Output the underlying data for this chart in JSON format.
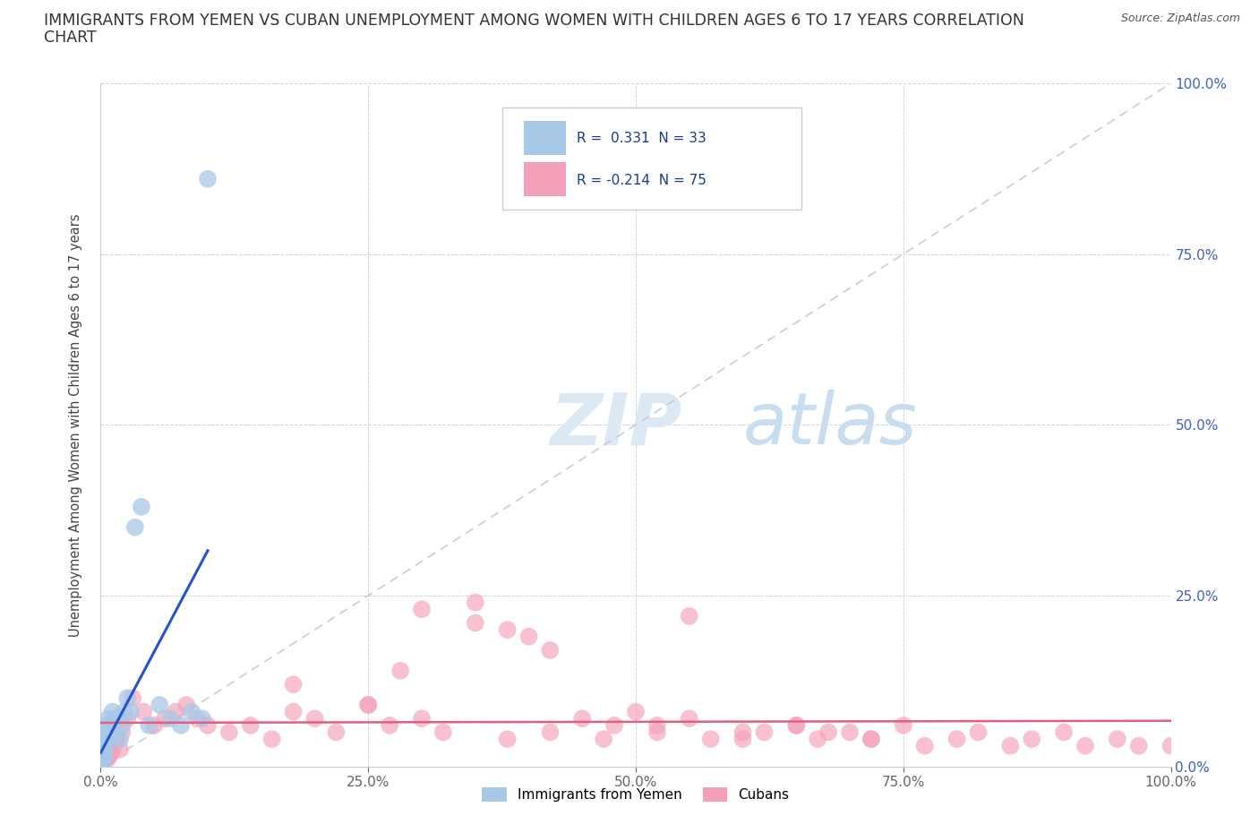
{
  "title_line1": "IMMIGRANTS FROM YEMEN VS CUBAN UNEMPLOYMENT AMONG WOMEN WITH CHILDREN AGES 6 TO 17 YEARS CORRELATION",
  "title_line2": "CHART",
  "source": "Source: ZipAtlas.com",
  "ylabel": "Unemployment Among Women with Children Ages 6 to 17 years",
  "color_yemen": "#a8c8e8",
  "color_cuba": "#f4a0b8",
  "color_trend_yemen": "#2255cc",
  "color_trend_cuba": "#e06080",
  "color_diag": "#c0c8d8",
  "color_grid": "#c8d0dc",
  "color_ytick_right": "#4060c0",
  "color_xtick_bottom": "#4060c0",
  "R_yemen": 0.331,
  "N_yemen": 33,
  "R_cuba": -0.214,
  "N_cuba": 75,
  "xlim": [
    0,
    1.0
  ],
  "ylim": [
    0,
    1.0
  ],
  "tick_vals": [
    0,
    0.25,
    0.5,
    0.75,
    1.0
  ],
  "tick_labels": [
    "0.0%",
    "25.0%",
    "50.0%",
    "75.0%",
    "100.0%"
  ],
  "yemen_x": [
    0.0,
    0.0,
    0.001,
    0.001,
    0.002,
    0.002,
    0.003,
    0.003,
    0.004,
    0.004,
    0.005,
    0.006,
    0.007,
    0.008,
    0.009,
    0.01,
    0.011,
    0.013,
    0.015,
    0.018,
    0.02,
    0.022,
    0.025,
    0.028,
    0.032,
    0.038,
    0.045,
    0.055,
    0.065,
    0.075,
    0.085,
    0.095,
    0.1
  ],
  "yemen_y": [
    0.0,
    0.005,
    0.003,
    0.01,
    0.008,
    0.015,
    0.012,
    0.02,
    0.025,
    0.04,
    0.05,
    0.06,
    0.07,
    0.04,
    0.05,
    0.06,
    0.08,
    0.05,
    0.07,
    0.04,
    0.06,
    0.08,
    0.1,
    0.08,
    0.35,
    0.38,
    0.06,
    0.09,
    0.07,
    0.06,
    0.08,
    0.07,
    0.86
  ],
  "cuba_x": [
    0.0,
    0.001,
    0.002,
    0.003,
    0.004,
    0.005,
    0.006,
    0.007,
    0.008,
    0.009,
    0.01,
    0.012,
    0.015,
    0.018,
    0.02,
    0.025,
    0.03,
    0.04,
    0.05,
    0.06,
    0.07,
    0.08,
    0.09,
    0.1,
    0.12,
    0.14,
    0.16,
    0.18,
    0.2,
    0.22,
    0.25,
    0.27,
    0.3,
    0.32,
    0.35,
    0.38,
    0.4,
    0.42,
    0.45,
    0.47,
    0.5,
    0.52,
    0.55,
    0.57,
    0.6,
    0.62,
    0.65,
    0.67,
    0.7,
    0.72,
    0.75,
    0.77,
    0.8,
    0.82,
    0.85,
    0.87,
    0.9,
    0.92,
    0.95,
    0.97,
    1.0,
    0.3,
    0.18,
    0.42,
    0.28,
    0.55,
    0.65,
    0.35,
    0.48,
    0.6,
    0.72,
    0.38,
    0.25,
    0.52,
    0.68
  ],
  "cuba_y": [
    0.0,
    0.005,
    0.008,
    0.01,
    0.012,
    0.015,
    0.01,
    0.02,
    0.015,
    0.025,
    0.02,
    0.03,
    0.04,
    0.025,
    0.05,
    0.07,
    0.1,
    0.08,
    0.06,
    0.07,
    0.08,
    0.09,
    0.07,
    0.06,
    0.05,
    0.06,
    0.04,
    0.08,
    0.07,
    0.05,
    0.09,
    0.06,
    0.07,
    0.05,
    0.21,
    0.04,
    0.19,
    0.05,
    0.07,
    0.04,
    0.08,
    0.05,
    0.07,
    0.04,
    0.04,
    0.05,
    0.06,
    0.04,
    0.05,
    0.04,
    0.06,
    0.03,
    0.04,
    0.05,
    0.03,
    0.04,
    0.05,
    0.03,
    0.04,
    0.03,
    0.03,
    0.23,
    0.12,
    0.17,
    0.14,
    0.22,
    0.06,
    0.24,
    0.06,
    0.05,
    0.04,
    0.2,
    0.09,
    0.06,
    0.05
  ]
}
